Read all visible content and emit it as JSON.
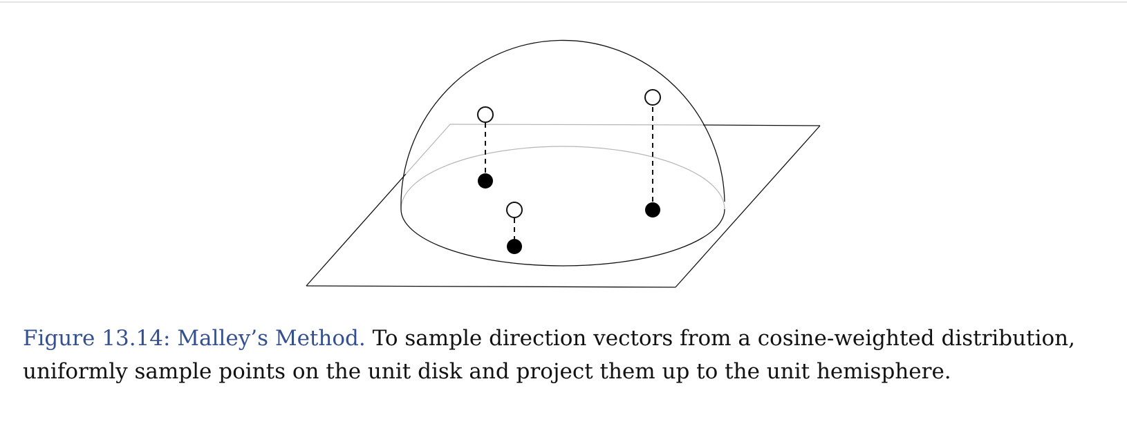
{
  "figure": {
    "label": "Figure 13.14: Malley’s Method.",
    "text": "To sample direction vectors from a cosine-weighted distribution, uniformly sample points on the unit disk and project them up to the unit hemisphere."
  },
  "colors": {
    "caption_label": "#34508f",
    "caption_text": "#111111",
    "hidden_line": "#b5b5b5",
    "line": "#111111"
  }
}
